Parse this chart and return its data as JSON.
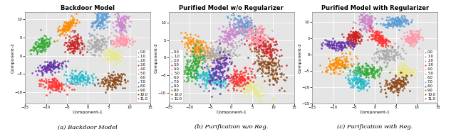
{
  "title1": "Backdoor Model",
  "title2": "Purified Model w/o Regularizer",
  "title3": "Purified Model with Regularizer",
  "caption1": "(a) Backdoor Model",
  "caption2": "(b) Purification w/o Reg.",
  "caption3": "(c) Purification with Reg.",
  "xlabel": "Component-1",
  "ylabel": "Component-2",
  "n_classes": 12,
  "legend_labels": [
    "0.0",
    "1.0",
    "2.0",
    "3.0",
    "4.0",
    "5.0",
    "6.0",
    "7.0",
    "8.0",
    "9.0",
    "10.0",
    "11.0"
  ],
  "class_colors": [
    "#5B9BD5",
    "#FF8C00",
    "#CC99CC",
    "#CC0000",
    "#FF9999",
    "#AAAAAA",
    "#FFFFAA",
    "#44BBCC",
    "#663399",
    "#33AA33",
    "#8B4513",
    "#FF3333"
  ],
  "bg_color": "#E5E5E5",
  "figsize": [
    6.4,
    1.89
  ],
  "dpi": 100
}
